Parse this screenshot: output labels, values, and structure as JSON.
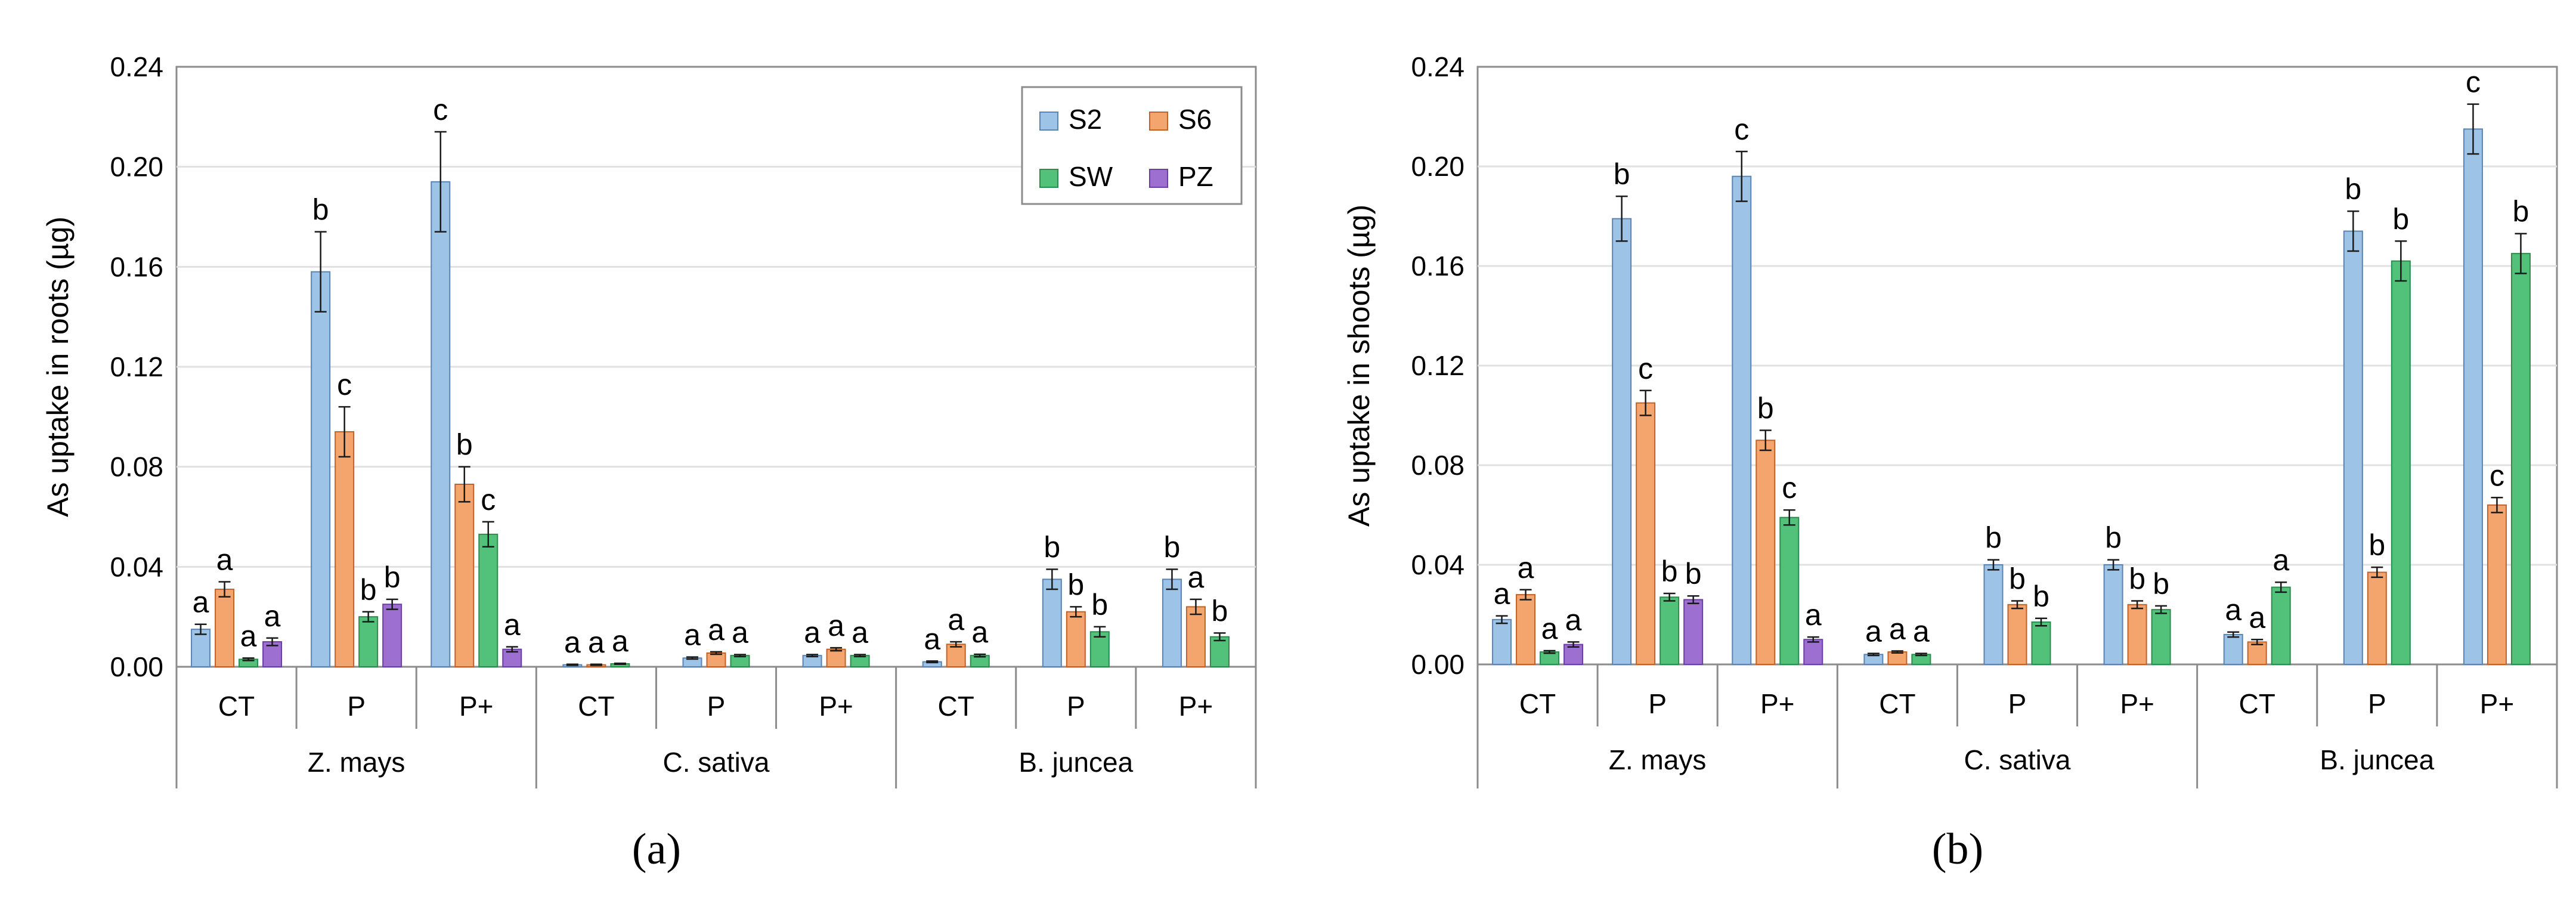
{
  "colors": {
    "S2": "#9dc3e6",
    "S6": "#f4a56d",
    "SW": "#52c27a",
    "PZ": "#9c6fd0",
    "S2_edge": "#5b84b1",
    "S6_edge": "#c0622a",
    "SW_edge": "#2f8a4e",
    "PZ_edge": "#6a3fa0"
  },
  "chart_data": [
    {
      "type": "bar",
      "panel_label": "(a)",
      "ylabel": "As uptake in roots (µg)",
      "ylim": [
        0,
        0.24
      ],
      "yticks": [
        "0.00",
        "0.04",
        "0.08",
        "0.12",
        "0.16",
        "0.20",
        "0.24"
      ],
      "grid": true,
      "legend": {
        "placement": "top-right",
        "entries": [
          "S2",
          "S6",
          "SW",
          "PZ"
        ]
      },
      "species": [
        "Z. mays",
        "C. sativa",
        "B. juncea"
      ],
      "treatments": [
        "CT",
        "P",
        "P+"
      ],
      "groups": [
        {
          "species": "Z. mays",
          "treatment": "CT",
          "bars": [
            {
              "series": "S2",
              "value": 0.015,
              "err": 0.002,
              "letter": "a"
            },
            {
              "series": "S6",
              "value": 0.031,
              "err": 0.003,
              "letter": "a"
            },
            {
              "series": "SW",
              "value": 0.003,
              "err": 0.0005,
              "letter": "a"
            },
            {
              "series": "PZ",
              "value": 0.01,
              "err": 0.0015,
              "letter": "a"
            }
          ]
        },
        {
          "species": "Z. mays",
          "treatment": "P",
          "bars": [
            {
              "series": "S2",
              "value": 0.158,
              "err": 0.016,
              "letter": "b"
            },
            {
              "series": "S6",
              "value": 0.094,
              "err": 0.01,
              "letter": "c"
            },
            {
              "series": "SW",
              "value": 0.02,
              "err": 0.002,
              "letter": "b"
            },
            {
              "series": "PZ",
              "value": 0.025,
              "err": 0.002,
              "letter": "b"
            }
          ]
        },
        {
          "species": "Z. mays",
          "treatment": "P+",
          "bars": [
            {
              "series": "S2",
              "value": 0.194,
              "err": 0.02,
              "letter": "c"
            },
            {
              "series": "S6",
              "value": 0.073,
              "err": 0.007,
              "letter": "b"
            },
            {
              "series": "SW",
              "value": 0.053,
              "err": 0.005,
              "letter": "c"
            },
            {
              "series": "PZ",
              "value": 0.007,
              "err": 0.001,
              "letter": "a"
            }
          ]
        },
        {
          "species": "C. sativa",
          "treatment": "CT",
          "bars": [
            {
              "series": "S2",
              "value": 0.0008,
              "err": 0.0002,
              "letter": "a"
            },
            {
              "series": "S6",
              "value": 0.0008,
              "err": 0.0002,
              "letter": "a"
            },
            {
              "series": "SW",
              "value": 0.0012,
              "err": 0.0002,
              "letter": "a"
            }
          ]
        },
        {
          "species": "C. sativa",
          "treatment": "P",
          "bars": [
            {
              "series": "S2",
              "value": 0.0035,
              "err": 0.0004,
              "letter": "a"
            },
            {
              "series": "S6",
              "value": 0.0055,
              "err": 0.0005,
              "letter": "a"
            },
            {
              "series": "SW",
              "value": 0.0045,
              "err": 0.0004,
              "letter": "a"
            }
          ]
        },
        {
          "species": "C. sativa",
          "treatment": "P+",
          "bars": [
            {
              "series": "S2",
              "value": 0.0045,
              "err": 0.0004,
              "letter": "a"
            },
            {
              "series": "S6",
              "value": 0.007,
              "err": 0.0006,
              "letter": "a"
            },
            {
              "series": "SW",
              "value": 0.0045,
              "err": 0.0004,
              "letter": "a"
            }
          ]
        },
        {
          "species": "B. juncea",
          "treatment": "CT",
          "bars": [
            {
              "series": "S2",
              "value": 0.002,
              "err": 0.0003,
              "letter": "a"
            },
            {
              "series": "S6",
              "value": 0.009,
              "err": 0.001,
              "letter": "a"
            },
            {
              "series": "SW",
              "value": 0.0045,
              "err": 0.0005,
              "letter": "a"
            }
          ]
        },
        {
          "species": "B. juncea",
          "treatment": "P",
          "bars": [
            {
              "series": "S2",
              "value": 0.035,
              "err": 0.004,
              "letter": "b"
            },
            {
              "series": "S6",
              "value": 0.022,
              "err": 0.002,
              "letter": "b"
            },
            {
              "series": "SW",
              "value": 0.014,
              "err": 0.002,
              "letter": "b"
            }
          ]
        },
        {
          "species": "B. juncea",
          "treatment": "P+",
          "bars": [
            {
              "series": "S2",
              "value": 0.035,
              "err": 0.004,
              "letter": "b"
            },
            {
              "series": "S6",
              "value": 0.024,
              "err": 0.003,
              "letter": "a"
            },
            {
              "series": "SW",
              "value": 0.012,
              "err": 0.0015,
              "letter": "b"
            }
          ]
        }
      ]
    },
    {
      "type": "bar",
      "panel_label": "(b)",
      "ylabel": "As uptake in shoots (µg)",
      "ylim": [
        0,
        0.24
      ],
      "yticks": [
        "0.00",
        "0.04",
        "0.08",
        "0.12",
        "0.16",
        "0.20",
        "0.24"
      ],
      "grid": true,
      "legend": null,
      "species": [
        "Z. mays",
        "C. sativa",
        "B. juncea"
      ],
      "treatments": [
        "CT",
        "P",
        "P+"
      ],
      "groups": [
        {
          "species": "Z. mays",
          "treatment": "CT",
          "bars": [
            {
              "series": "S2",
              "value": 0.018,
              "err": 0.0015,
              "letter": "a"
            },
            {
              "series": "S6",
              "value": 0.028,
              "err": 0.002,
              "letter": "a"
            },
            {
              "series": "SW",
              "value": 0.005,
              "err": 0.0005,
              "letter": "a"
            },
            {
              "series": "PZ",
              "value": 0.008,
              "err": 0.001,
              "letter": "a"
            }
          ]
        },
        {
          "species": "Z. mays",
          "treatment": "P",
          "bars": [
            {
              "series": "S2",
              "value": 0.179,
              "err": 0.009,
              "letter": "b"
            },
            {
              "series": "S6",
              "value": 0.105,
              "err": 0.005,
              "letter": "c"
            },
            {
              "series": "SW",
              "value": 0.027,
              "err": 0.0015,
              "letter": "b"
            },
            {
              "series": "PZ",
              "value": 0.026,
              "err": 0.0015,
              "letter": "b"
            }
          ]
        },
        {
          "species": "Z. mays",
          "treatment": "P+",
          "bars": [
            {
              "series": "S2",
              "value": 0.196,
              "err": 0.01,
              "letter": "c"
            },
            {
              "series": "S6",
              "value": 0.09,
              "err": 0.004,
              "letter": "b"
            },
            {
              "series": "SW",
              "value": 0.059,
              "err": 0.003,
              "letter": "c"
            },
            {
              "series": "PZ",
              "value": 0.01,
              "err": 0.001,
              "letter": "a"
            }
          ]
        },
        {
          "species": "C. sativa",
          "treatment": "CT",
          "bars": [
            {
              "series": "S2",
              "value": 0.004,
              "err": 0.0004,
              "letter": "a"
            },
            {
              "series": "S6",
              "value": 0.005,
              "err": 0.0004,
              "letter": "a"
            },
            {
              "series": "SW",
              "value": 0.004,
              "err": 0.0004,
              "letter": "a"
            }
          ]
        },
        {
          "species": "C. sativa",
          "treatment": "P",
          "bars": [
            {
              "series": "S2",
              "value": 0.04,
              "err": 0.002,
              "letter": "b"
            },
            {
              "series": "S6",
              "value": 0.024,
              "err": 0.0015,
              "letter": "b"
            },
            {
              "series": "SW",
              "value": 0.017,
              "err": 0.0015,
              "letter": "b"
            }
          ]
        },
        {
          "species": "C. sativa",
          "treatment": "P+",
          "bars": [
            {
              "series": "S2",
              "value": 0.04,
              "err": 0.002,
              "letter": "b"
            },
            {
              "series": "S6",
              "value": 0.024,
              "err": 0.0015,
              "letter": "b"
            },
            {
              "series": "SW",
              "value": 0.022,
              "err": 0.0015,
              "letter": "b"
            }
          ]
        },
        {
          "species": "B. juncea",
          "treatment": "CT",
          "bars": [
            {
              "series": "S2",
              "value": 0.012,
              "err": 0.001,
              "letter": "a"
            },
            {
              "series": "S6",
              "value": 0.009,
              "err": 0.001,
              "letter": "a"
            },
            {
              "series": "SW",
              "value": 0.031,
              "err": 0.002,
              "letter": "a"
            }
          ]
        },
        {
          "species": "B. juncea",
          "treatment": "P",
          "bars": [
            {
              "series": "S2",
              "value": 0.174,
              "err": 0.008,
              "letter": "b"
            },
            {
              "series": "S6",
              "value": 0.037,
              "err": 0.002,
              "letter": "b"
            },
            {
              "series": "SW",
              "value": 0.162,
              "err": 0.008,
              "letter": "b"
            }
          ]
        },
        {
          "species": "B. juncea",
          "treatment": "P+",
          "bars": [
            {
              "series": "S2",
              "value": 0.215,
              "err": 0.01,
              "letter": "c"
            },
            {
              "series": "S6",
              "value": 0.064,
              "err": 0.003,
              "letter": "c"
            },
            {
              "series": "SW",
              "value": 0.165,
              "err": 0.008,
              "letter": "b"
            }
          ]
        }
      ]
    }
  ]
}
